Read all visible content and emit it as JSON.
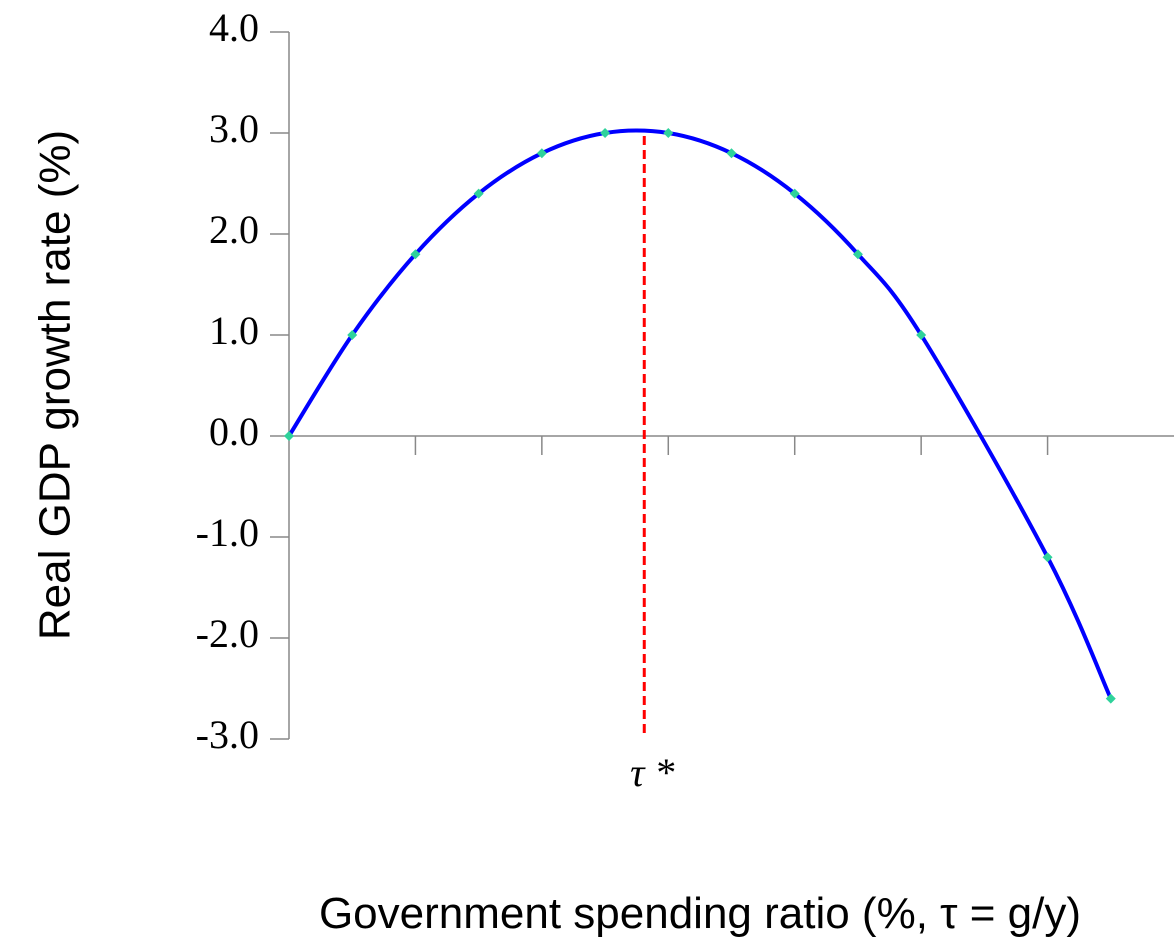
{
  "chart_data": {
    "type": "line",
    "x_label": "Government spending ratio (%, τ = g/y)",
    "y_label": "Real GDP growth rate (%)",
    "x": [
      0,
      0.5,
      1,
      1.5,
      2,
      2.5,
      3,
      3.5,
      4,
      4.5,
      5,
      6,
      6.5
    ],
    "series": [
      {
        "color": "#0000ff",
        "marker_color": "#2fd29b",
        "values": [
          0,
          1.0,
          1.8,
          2.4,
          2.8,
          3.0,
          3.0,
          2.8,
          2.4,
          1.8,
          1.0,
          -1.2,
          -2.6
        ]
      }
    ],
    "xlim": [
      0,
      7
    ],
    "xticks": [
      1,
      2,
      3,
      4,
      5,
      6
    ],
    "ylim": [
      -3,
      4
    ],
    "yticks": [
      {
        "value": -3,
        "label": "-3.0"
      },
      {
        "value": -2,
        "label": "-2.0"
      },
      {
        "value": -1,
        "label": "-1.0"
      },
      {
        "value": 0,
        "label": "0.0"
      },
      {
        "value": 1,
        "label": "1.0"
      },
      {
        "value": 2,
        "label": "2.0"
      },
      {
        "value": 3,
        "label": "3.0"
      },
      {
        "value": 4,
        "label": "4.0"
      }
    ],
    "vline": {
      "x": 2.81,
      "y": [
        -2.97,
        2.97
      ],
      "color": "#ff0000",
      "label": "τ *"
    }
  }
}
